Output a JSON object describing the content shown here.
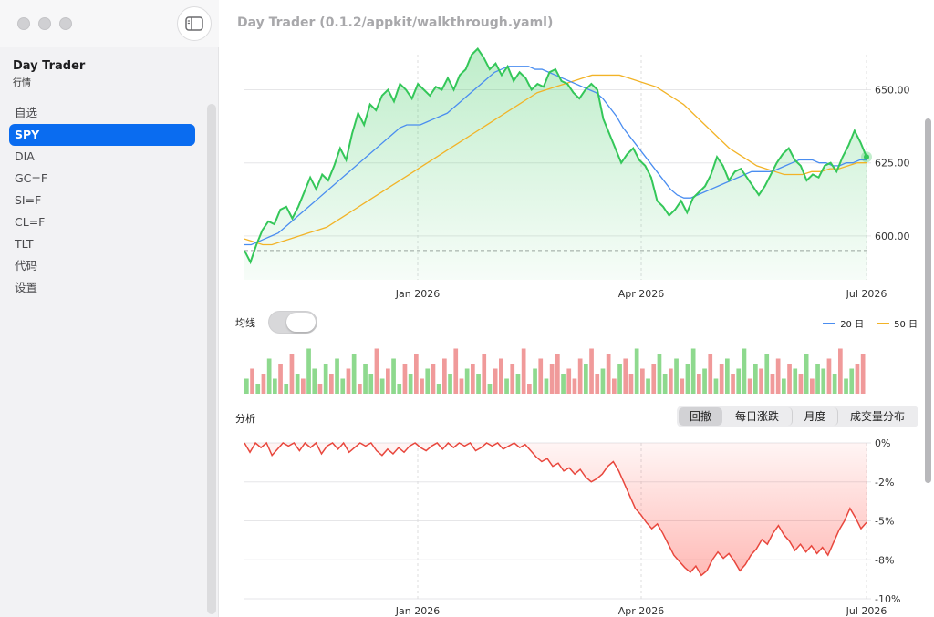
{
  "window": {
    "title": "Day Trader (0.1.2/appkit/walkthrough.yaml)"
  },
  "sidebar": {
    "app_title": "Day Trader",
    "app_subtitle": "行情",
    "items": [
      {
        "label": "自选",
        "active": false
      },
      {
        "label": "SPY",
        "active": true
      },
      {
        "label": "DIA",
        "active": false
      },
      {
        "label": "GC=F",
        "active": false
      },
      {
        "label": "SI=F",
        "active": false
      },
      {
        "label": "CL=F",
        "active": false
      },
      {
        "label": "TLT",
        "active": false
      },
      {
        "label": "代码",
        "active": false
      },
      {
        "label": "设置",
        "active": false
      }
    ]
  },
  "controls": {
    "ma_label": "均线",
    "ma_toggle_on": false,
    "legend": [
      {
        "label": "20 日",
        "color": "#4a8df0"
      },
      {
        "label": "50 日",
        "color": "#f2b327"
      }
    ],
    "analysis_label": "分析",
    "analysis_tabs": [
      {
        "label": "回撤",
        "active": true
      },
      {
        "label": "每日涨跌",
        "active": false
      },
      {
        "label": "月度",
        "active": false
      },
      {
        "label": "成交量分布",
        "active": false
      }
    ]
  },
  "chart_data": [
    {
      "type": "area",
      "x_ticks": [
        "Jan 2026",
        "Apr 2026",
        "Jul 2026"
      ],
      "y_ticks": [
        "600.00",
        "625.00",
        "650.00"
      ],
      "ylim": [
        585,
        662
      ],
      "price_color": "#34c759",
      "reference_line": 595,
      "series": [
        {
          "name": "price",
          "values": [
            595,
            591,
            597,
            602,
            605,
            604,
            609,
            610,
            606,
            610,
            615,
            620,
            616,
            621,
            619,
            624,
            630,
            626,
            635,
            642,
            638,
            645,
            643,
            648,
            650,
            646,
            652,
            650,
            647,
            652,
            650,
            648,
            651,
            650,
            654,
            650,
            655,
            657,
            662,
            664,
            661,
            657,
            659,
            655,
            658,
            653,
            656,
            654,
            650,
            652,
            651,
            656,
            657,
            653,
            652,
            649,
            647,
            650,
            652,
            650,
            640,
            635,
            630,
            625,
            628,
            630,
            626,
            624,
            620,
            612,
            610,
            607,
            609,
            612,
            608,
            613,
            615,
            617,
            621,
            627,
            624,
            619,
            622,
            623,
            620,
            617,
            614,
            617,
            621,
            625,
            628,
            630,
            626,
            624,
            619,
            621,
            620,
            624,
            625,
            622,
            627,
            631,
            636,
            632,
            627
          ]
        },
        {
          "name": "20 日",
          "values": [
            597,
            597,
            598,
            599,
            600,
            601,
            603,
            605,
            607,
            609,
            611,
            613,
            615,
            617,
            619,
            621,
            623,
            625,
            627,
            629,
            631,
            633,
            635,
            637,
            638,
            638,
            638,
            639,
            640,
            641,
            642,
            644,
            646,
            648,
            650,
            652,
            654,
            656,
            657,
            658,
            658,
            658,
            658,
            657,
            657,
            656,
            655,
            654,
            653,
            652,
            651,
            650,
            649,
            647,
            644,
            641,
            637,
            634,
            631,
            628,
            625,
            622,
            619,
            616,
            614,
            613,
            613,
            614,
            615,
            616,
            617,
            618,
            619,
            620,
            621,
            622,
            622,
            622,
            622,
            623,
            624,
            625,
            626,
            626,
            626,
            625,
            625,
            624,
            624,
            625,
            625,
            626,
            626
          ]
        },
        {
          "name": "50 日",
          "values": [
            599,
            598,
            597,
            597,
            598,
            599,
            600,
            601,
            602,
            603,
            605,
            607,
            609,
            611,
            613,
            615,
            617,
            619,
            621,
            623,
            625,
            627,
            629,
            631,
            633,
            635,
            637,
            639,
            641,
            643,
            645,
            647,
            649,
            650,
            651,
            652,
            653,
            654,
            655,
            655,
            655,
            655,
            654,
            653,
            652,
            651,
            649,
            647,
            645,
            642,
            639,
            636,
            633,
            630,
            628,
            626,
            624,
            623,
            622,
            621,
            621,
            621,
            622,
            622,
            623,
            623,
            624,
            625,
            625
          ]
        }
      ]
    },
    {
      "type": "bar",
      "title": "volume",
      "colors": {
        "up": "#8ed98e",
        "down": "#f09a9a"
      },
      "values": [
        0.3,
        0.5,
        0.2,
        0.4,
        0.7,
        0.3,
        0.6,
        0.2,
        0.8,
        0.4,
        0.3,
        0.9,
        0.5,
        0.2,
        0.6,
        0.4,
        0.7,
        0.3,
        0.5,
        0.8,
        0.2,
        0.6,
        0.4,
        0.9,
        0.3,
        0.5,
        0.7,
        0.2,
        0.6,
        0.4,
        0.8,
        0.3,
        0.5,
        0.6,
        0.2,
        0.7,
        0.4,
        0.9,
        0.3,
        0.5,
        0.6,
        0.4,
        0.8,
        0.2,
        0.5,
        0.7,
        0.3,
        0.6,
        0.4,
        0.9,
        0.2,
        0.5,
        0.7,
        0.3,
        0.6,
        0.8,
        0.4,
        0.5,
        0.3,
        0.7,
        0.6,
        0.9,
        0.4,
        0.5,
        0.8,
        0.3,
        0.6,
        0.7,
        0.4,
        0.9,
        0.5,
        0.3,
        0.6,
        0.8,
        0.4,
        0.5,
        0.7,
        0.3,
        0.6,
        0.9,
        0.4,
        0.5,
        0.8,
        0.3,
        0.6,
        0.7,
        0.4,
        0.5,
        0.9,
        0.3,
        0.6,
        0.5,
        0.8,
        0.4,
        0.7,
        0.3,
        0.6,
        0.5,
        0.4,
        0.8,
        0.3,
        0.6,
        0.5,
        0.7,
        0.4,
        0.9,
        0.3,
        0.5,
        0.6,
        0.8
      ],
      "up_flags": [
        1,
        0,
        1,
        0,
        1,
        1,
        0,
        1,
        0,
        1,
        0,
        1,
        1,
        0,
        1,
        0,
        1,
        1,
        0,
        1,
        0,
        1,
        1,
        0,
        1,
        0,
        1,
        1,
        0,
        1,
        0,
        0,
        1,
        0,
        1,
        0,
        1,
        0,
        0,
        1,
        0,
        1,
        0,
        1,
        0,
        0,
        1,
        0,
        1,
        0,
        0,
        1,
        0,
        1,
        0,
        0,
        1,
        0,
        0,
        0,
        1,
        0,
        0,
        1,
        0,
        0,
        1,
        0,
        0,
        1,
        0,
        1,
        0,
        1,
        1,
        0,
        1,
        0,
        1,
        1,
        0,
        1,
        0,
        1,
        0,
        1,
        0,
        1,
        1,
        0,
        1,
        0,
        1,
        0,
        0,
        1,
        0,
        1,
        0,
        1,
        0,
        1,
        1,
        0,
        1,
        0,
        1,
        1,
        0,
        0
      ]
    },
    {
      "type": "area",
      "title": "drawdown",
      "x_ticks": [
        "Jan 2026",
        "Apr 2026",
        "Jul 2026"
      ],
      "y_ticks": [
        "0%",
        "-2%",
        "-5%",
        "-8%",
        "-10%"
      ],
      "ylim": [
        -10,
        0
      ],
      "color": "#e8473d",
      "values": [
        0,
        -0.6,
        0,
        -0.3,
        0,
        -0.8,
        -0.4,
        0,
        -0.2,
        0,
        -0.5,
        0,
        -0.3,
        0,
        -0.7,
        -0.2,
        0,
        -0.4,
        0,
        -0.6,
        -0.3,
        0,
        -0.2,
        0,
        -0.5,
        -0.8,
        -0.4,
        -0.7,
        -0.3,
        -0.6,
        -0.2,
        0,
        -0.3,
        -0.5,
        -0.2,
        0,
        -0.4,
        0,
        -0.3,
        0,
        -0.2,
        0,
        -0.5,
        -0.3,
        0,
        -0.2,
        0,
        -0.4,
        -0.2,
        0,
        -0.3,
        -0.1,
        -0.5,
        -0.9,
        -1.2,
        -1.0,
        -1.5,
        -1.3,
        -1.8,
        -1.6,
        -2.0,
        -1.7,
        -2.2,
        -2.5,
        -2.3,
        -2.0,
        -1.5,
        -1.2,
        -1.8,
        -2.6,
        -3.4,
        -4.2,
        -4.6,
        -5.1,
        -5.5,
        -5.2,
        -5.8,
        -6.5,
        -7.2,
        -7.6,
        -8.0,
        -8.3,
        -7.9,
        -8.5,
        -8.2,
        -7.5,
        -7.0,
        -7.4,
        -7.1,
        -7.6,
        -8.2,
        -7.8,
        -7.2,
        -6.8,
        -6.2,
        -6.5,
        -5.8,
        -5.3,
        -5.9,
        -6.3,
        -6.9,
        -6.5,
        -7.0,
        -6.6,
        -7.1,
        -6.7,
        -7.2,
        -6.4,
        -5.6,
        -5.0,
        -4.2,
        -4.8,
        -5.5,
        -5.1
      ]
    }
  ]
}
